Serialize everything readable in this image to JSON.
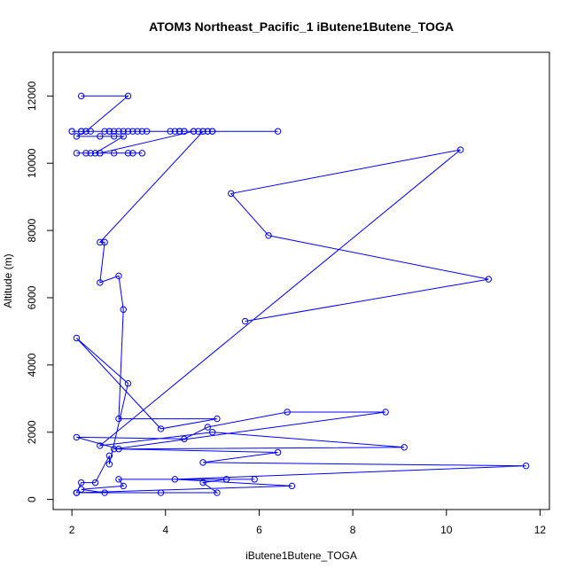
{
  "chart_data": {
    "type": "line",
    "title": "ATOM3 Northeast_Pacific_1 iButene1Butene_TOGA",
    "xlabel": "iButene1Butene_TOGA",
    "ylabel": "Altitude (m)",
    "xlim": [
      1.6,
      12.2
    ],
    "ylim": [
      -300,
      13300
    ],
    "x_ticks": [
      2,
      4,
      6,
      8,
      10,
      12
    ],
    "y_ticks": [
      0,
      2000,
      4000,
      6000,
      8000,
      10000,
      12000
    ],
    "series": [
      {
        "color": "#0000ff",
        "marker": "open-circle",
        "x": [
          2.2,
          3.2,
          2.3,
          2.1,
          2.6,
          2.9,
          3.1,
          2.5,
          2.9,
          3.3,
          2.6,
          3.2,
          3.5,
          2.3,
          2.1,
          2.4,
          2.6,
          4.6,
          4.8,
          6.4,
          5.0,
          4.7,
          3.2,
          2.2,
          2.8,
          2.3,
          2.7,
          2.4,
          2.8,
          3.3,
          2.0,
          3.4,
          4.3,
          4.3,
          4.9,
          2.0,
          2.2,
          4.4,
          3.6,
          4.2,
          3.5,
          2.9,
          4.1,
          4.6,
          4.3,
          3.1,
          3.0,
          4.9,
          5.0,
          4.4,
          4.8,
          2.6,
          2.7,
          2.6,
          3.0,
          3.1,
          3.0,
          5.1,
          3.9,
          2.1,
          3.2,
          2.8,
          2.8,
          2.5,
          2.2,
          2.1,
          2.1,
          5.1,
          4.8,
          5.3,
          5.9,
          3.0,
          3.1,
          2.2,
          2.7,
          3.9,
          2.1,
          6.7,
          4.2,
          11.7,
          4.8,
          6.4,
          3.0,
          2.1,
          4.4,
          4.9,
          6.6,
          8.7,
          2.9,
          9.1,
          5.0,
          2.6,
          10.3,
          5.4,
          6.2,
          10.9,
          5.7
        ],
        "y": [
          12000,
          12000,
          10950,
          10800,
          10800,
          10800,
          10800,
          10300,
          10300,
          10300,
          10300,
          10300,
          10300,
          10300,
          10300,
          10300,
          10300,
          10950,
          10950,
          10950,
          10950,
          10950,
          10950,
          10950,
          10950,
          10950,
          10950,
          10950,
          10950,
          10950,
          10950,
          10950,
          10950,
          10950,
          10950,
          10950,
          10950,
          10950,
          10950,
          10950,
          10950,
          10950,
          10950,
          10950,
          10950,
          10950,
          10950,
          10950,
          10950,
          10950,
          10950,
          7650,
          7650,
          6450,
          6650,
          5650,
          2400,
          2400,
          2100,
          4800,
          3450,
          1050,
          1300,
          500,
          500,
          200,
          200,
          200,
          500,
          600,
          600,
          600,
          400,
          300,
          200,
          200,
          200,
          400,
          600,
          1000,
          1100,
          1400,
          1500,
          1850,
          1800,
          2150,
          2600,
          2600,
          1500,
          1550,
          2000,
          1600,
          10400,
          9100,
          7850,
          6550,
          5300
        ]
      }
    ]
  }
}
